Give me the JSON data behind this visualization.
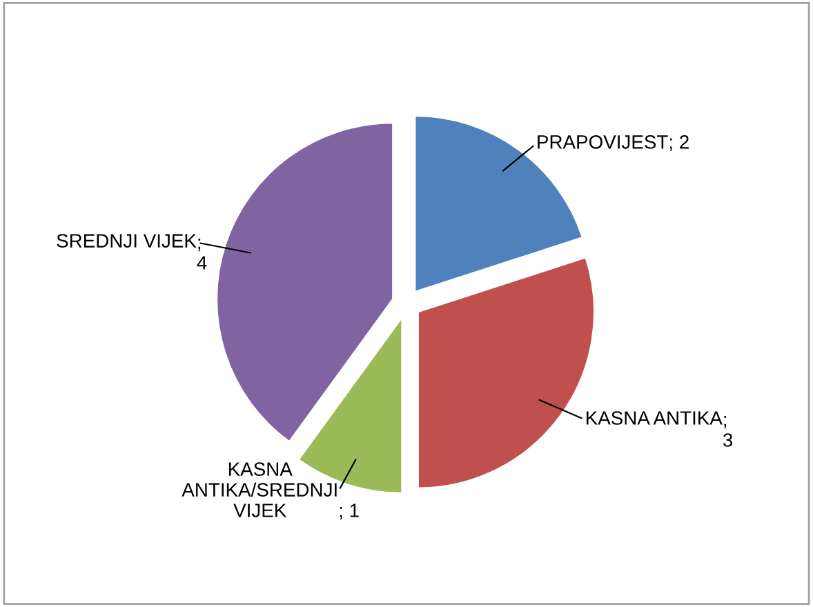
{
  "chart_data": {
    "type": "pie",
    "categories": [
      "PRAPOVIJEST",
      "KASNA ANTIKA",
      "KASNA ANTIKA/SREDNJI VIJEK",
      "SREDNJI VIJEK"
    ],
    "values": [
      2,
      3,
      1,
      4
    ],
    "colors": [
      "#4f81bd",
      "#c0504d",
      "#9bbb59",
      "#8064a2"
    ],
    "value_labels": [
      "; 2",
      ";\n3",
      "; 1",
      ";\n4"
    ],
    "legend": false
  }
}
